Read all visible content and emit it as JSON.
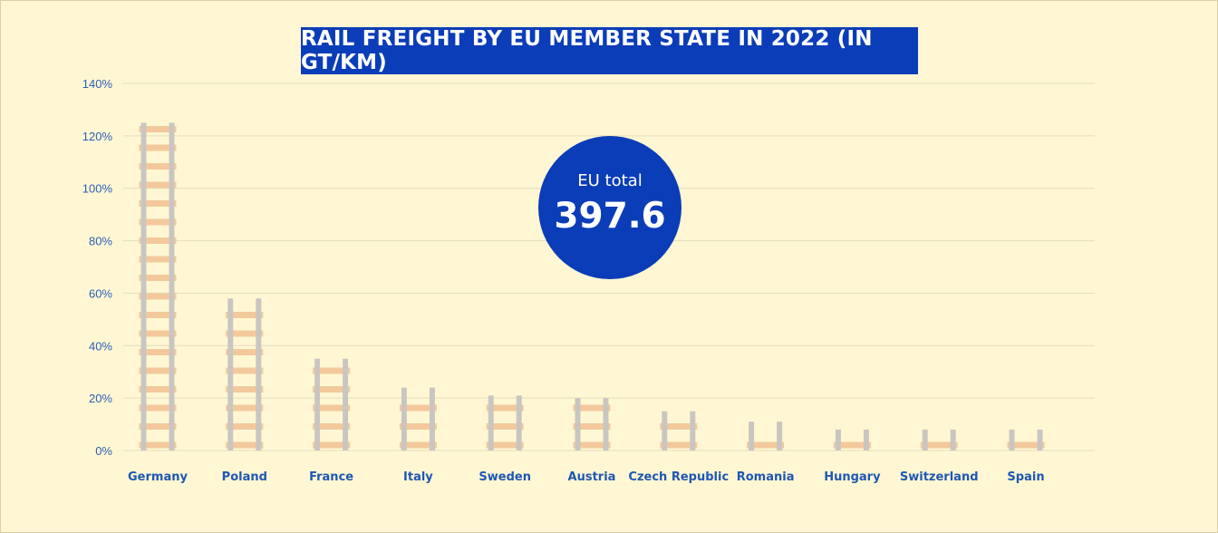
{
  "chart_data": {
    "type": "bar",
    "title": "RAIL FREIGHT BY EU MEMBER STATE IN 2022 (IN GT/KM)",
    "categories": [
      "Germany",
      "Poland",
      "France",
      "Italy",
      "Sweden",
      "Austria",
      "Czech Republic",
      "Romania",
      "Hungary",
      "Switzerland",
      "Spain"
    ],
    "values": [
      125,
      58,
      35,
      24,
      21,
      20,
      15,
      11,
      8,
      8,
      8
    ],
    "y_unit": "%",
    "ylim": [
      0,
      140
    ],
    "yticks": [
      "0%",
      "20%",
      "40%",
      "60%",
      "80%",
      "100%",
      "120%",
      "140%"
    ],
    "grid": true,
    "annotation": {
      "label": "EU total",
      "value": "397.6"
    },
    "colors": {
      "rail": "#c9c6c2",
      "tie": "#f3c99c",
      "badge": "#0b3db8",
      "label": "#1f57b3"
    }
  }
}
